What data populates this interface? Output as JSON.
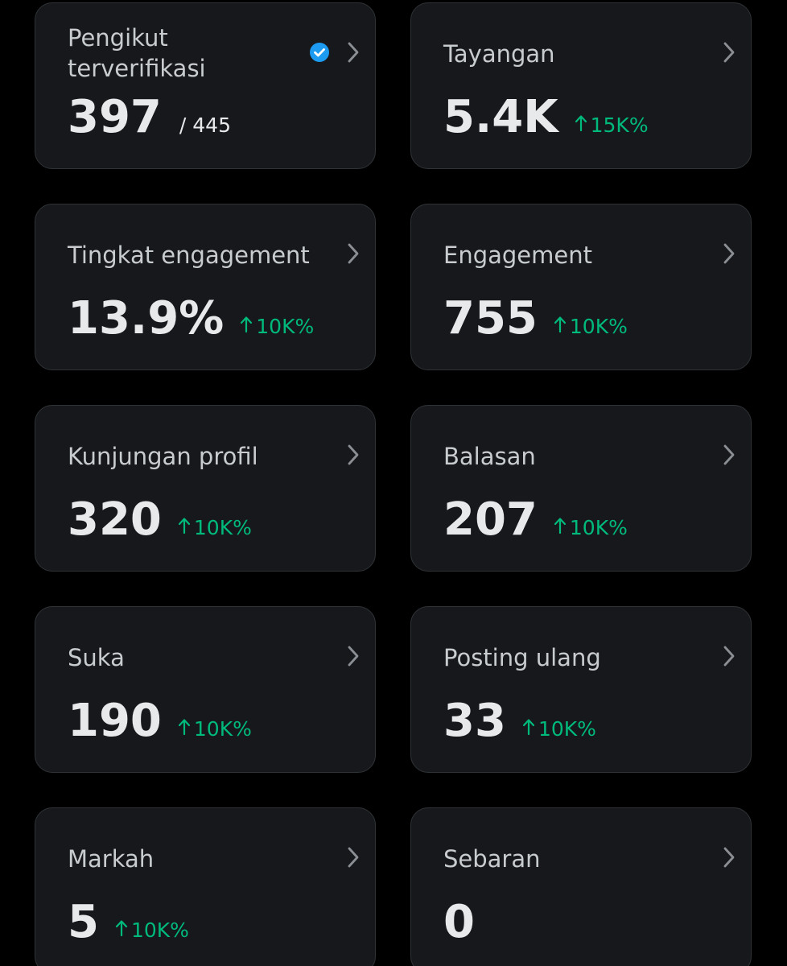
{
  "cards": [
    {
      "label": "Pengikut terverifikasi",
      "verified": true,
      "value": "397",
      "total": "/ 445"
    },
    {
      "label": "Tayangan",
      "value": "5.4K",
      "change": "15K%"
    },
    {
      "label": "Tingkat engagement",
      "value": "13.9%",
      "change": "10K%"
    },
    {
      "label": "Engagement",
      "value": "755",
      "change": "10K%"
    },
    {
      "label": "Kunjungan profil",
      "value": "320",
      "change": "10K%"
    },
    {
      "label": "Balasan",
      "value": "207",
      "change": "10K%"
    },
    {
      "label": "Suka",
      "value": "190",
      "change": "10K%"
    },
    {
      "label": "Posting ulang",
      "value": "33",
      "change": "10K%"
    },
    {
      "label": "Markah",
      "value": "5",
      "change": "10K%"
    },
    {
      "label": "Sebaran",
      "value": "0"
    }
  ]
}
